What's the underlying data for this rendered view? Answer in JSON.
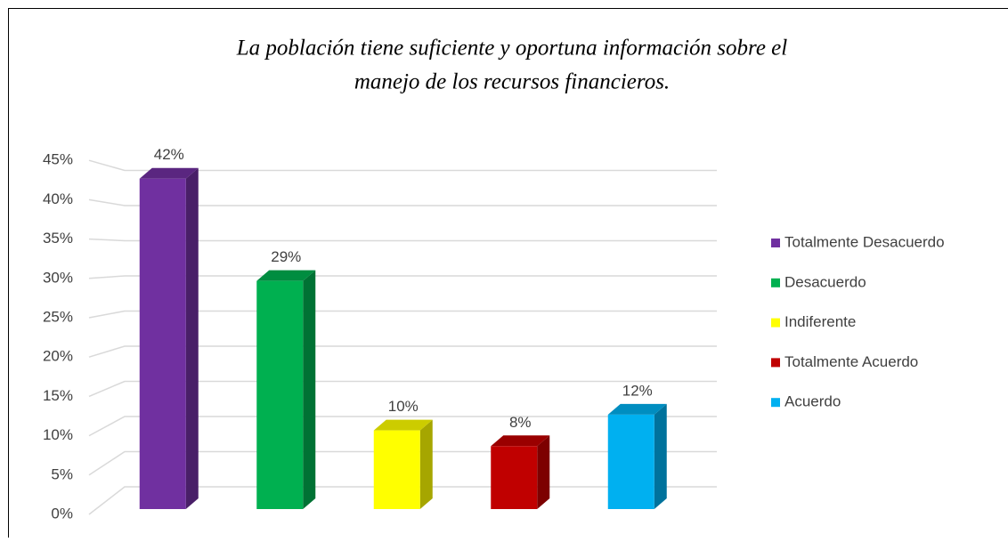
{
  "chart_data": {
    "type": "bar",
    "title": [
      "La población tiene suficiente y oportuna información sobre el",
      "manejo de los recursos financieros."
    ],
    "categories": [
      "Totalmente Desacuerdo",
      "Desacuerdo",
      "Indiferente",
      "Totalmente Acuerdo",
      "Acuerdo"
    ],
    "values": [
      42,
      29,
      10,
      8,
      12
    ],
    "value_labels": [
      "42%",
      "29%",
      "10%",
      "8%",
      "12%"
    ],
    "colors": [
      "#7030a0",
      "#00b050",
      "#ffff00",
      "#c00000",
      "#00b0f0"
    ],
    "ylim": [
      0,
      50
    ],
    "yticks": [
      {
        "value": 0,
        "label": "0%"
      },
      {
        "value": 5,
        "label": "5%"
      },
      {
        "value": 10,
        "label": "10%"
      },
      {
        "value": 15,
        "label": "15%"
      },
      {
        "value": 20,
        "label": "20%"
      },
      {
        "value": 25,
        "label": "25%"
      },
      {
        "value": 30,
        "label": "30%"
      },
      {
        "value": 35,
        "label": "35%"
      },
      {
        "value": 40,
        "label": "40%"
      },
      {
        "value": 45,
        "label": "45%"
      }
    ],
    "grid": true,
    "legend": "right"
  }
}
